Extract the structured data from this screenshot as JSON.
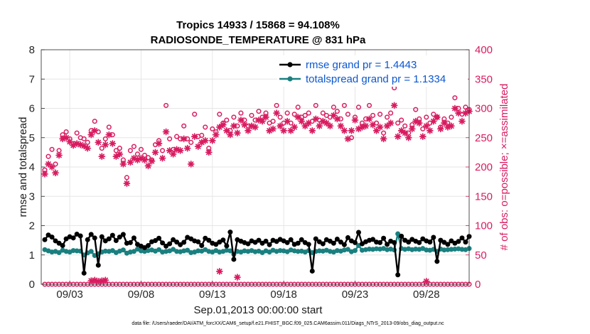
{
  "chart_data": {
    "type": "line",
    "title": "Tropics 14933 / 15868 = 94.108%",
    "subtitle": "RADIOSONDE_TEMPERATURE @ 831 hPa",
    "xlabel": "Sep.01,2013 00:00:00 start",
    "ylabel_left": "rmse and totalspread",
    "ylabel_right": "# of obs: o=possible; ×=assimilated",
    "footnote": "data file: /Users/raeder/DAI/ATM_forcXX/CAM6_setup/f.e21.FHIST_BGC.f09_025.CAM6assim.011/Diags_NTrS_2013-09/obs_diag_output.nc",
    "ylim_left": [
      0,
      8
    ],
    "ylim_right": [
      0,
      400
    ],
    "xlim": [
      1.0,
      31.0
    ],
    "yticks_left": [
      0,
      1,
      2,
      3,
      4,
      5,
      6,
      7,
      8
    ],
    "yticks_right": [
      0,
      50,
      100,
      150,
      200,
      250,
      300,
      350,
      400
    ],
    "xticks": [
      {
        "value": 3,
        "label": "09/03"
      },
      {
        "value": 8,
        "label": "09/08"
      },
      {
        "value": 13,
        "label": "09/13"
      },
      {
        "value": 18,
        "label": "09/18"
      },
      {
        "value": 23,
        "label": "09/23"
      },
      {
        "value": 28,
        "label": "09/28"
      }
    ],
    "colors": {
      "rmse": "#000000",
      "spread": "#1a7f7f",
      "obs": "#d81b60",
      "legend_text": "#0b57d0"
    },
    "x": [
      1.25,
      1.5,
      1.75,
      2.0,
      2.25,
      2.5,
      2.75,
      3.0,
      3.25,
      3.5,
      3.75,
      4.0,
      4.25,
      4.5,
      4.75,
      5.0,
      5.25,
      5.5,
      5.75,
      6.0,
      6.25,
      6.5,
      6.75,
      7.0,
      7.25,
      7.5,
      7.75,
      8.0,
      8.25,
      8.5,
      8.75,
      9.0,
      9.25,
      9.5,
      9.75,
      10.0,
      10.25,
      10.5,
      10.75,
      11.0,
      11.25,
      11.5,
      11.75,
      12.0,
      12.25,
      12.5,
      12.75,
      13.0,
      13.25,
      13.5,
      13.75,
      14.0,
      14.25,
      14.5,
      14.75,
      15.0,
      15.25,
      15.5,
      15.75,
      16.0,
      16.25,
      16.5,
      16.75,
      17.0,
      17.25,
      17.5,
      17.75,
      18.0,
      18.25,
      18.5,
      18.75,
      19.0,
      19.25,
      19.5,
      19.75,
      20.0,
      20.25,
      20.5,
      20.75,
      21.0,
      21.25,
      21.5,
      21.75,
      22.0,
      22.25,
      22.5,
      22.75,
      23.0,
      23.25,
      23.5,
      23.75,
      24.0,
      24.25,
      24.5,
      24.75,
      25.0,
      25.25,
      25.5,
      25.75,
      26.0,
      26.25,
      26.5,
      26.75,
      27.0,
      27.25,
      27.5,
      27.75,
      28.0,
      28.25,
      28.5,
      28.75,
      29.0,
      29.25,
      29.5,
      29.75,
      30.0,
      30.25,
      30.5,
      30.75,
      31.0
    ],
    "series": [
      {
        "name": "rmse",
        "legend": "rmse grand pr = 1.4443",
        "axis": "left",
        "marker": "dot-line",
        "values": [
          1.52,
          1.68,
          1.61,
          1.48,
          1.4,
          1.32,
          1.55,
          1.62,
          1.58,
          1.71,
          1.65,
          0.38,
          1.52,
          1.7,
          1.58,
          0.65,
          1.62,
          1.48,
          1.55,
          1.67,
          1.49,
          1.61,
          1.7,
          1.4,
          1.42,
          1.58,
          1.36,
          1.3,
          1.25,
          1.32,
          1.45,
          1.49,
          1.57,
          1.41,
          1.3,
          1.38,
          1.52,
          1.44,
          1.35,
          1.43,
          1.6,
          1.55,
          1.48,
          1.45,
          1.32,
          1.57,
          1.5,
          1.4,
          1.36,
          1.44,
          1.51,
          1.31,
          1.78,
          0.85,
          1.52,
          1.47,
          1.42,
          1.38,
          1.48,
          1.43,
          1.5,
          1.4,
          1.47,
          1.35,
          1.5,
          1.46,
          1.53,
          1.48,
          1.42,
          1.52,
          1.36,
          1.4,
          1.52,
          1.42,
          1.36,
          0.45,
          1.55,
          1.45,
          1.38,
          1.52,
          1.47,
          1.4,
          1.54,
          1.44,
          1.35,
          1.59,
          1.48,
          1.42,
          1.77,
          1.38,
          1.45,
          1.5,
          1.53,
          1.44,
          1.42,
          1.57,
          1.36,
          1.47,
          1.42,
          0.32,
          1.64,
          1.5,
          1.44,
          1.53,
          1.47,
          1.42,
          1.55,
          1.48,
          1.44,
          1.6,
          0.78,
          1.5,
          1.43,
          1.36,
          1.48,
          1.4,
          1.46,
          1.58,
          1.44,
          1.63
        ]
      },
      {
        "name": "totalspread",
        "legend": "totalspread grand pr = 1.1334",
        "axis": "left",
        "marker": "dot-line",
        "values": [
          1.18,
          1.14,
          1.1,
          1.12,
          1.08,
          1.16,
          1.12,
          1.1,
          1.15,
          1.14,
          1.13,
          1.0,
          1.07,
          1.12,
          0.98,
          1.04,
          1.1,
          1.13,
          1.12,
          1.15,
          1.08,
          1.13,
          1.17,
          1.06,
          1.1,
          1.12,
          1.2,
          1.14,
          1.12,
          1.15,
          1.17,
          1.13,
          1.18,
          1.1,
          1.12,
          1.14,
          1.19,
          1.12,
          1.11,
          1.14,
          1.16,
          1.08,
          1.1,
          1.14,
          1.13,
          1.18,
          1.12,
          1.1,
          1.15,
          1.1,
          1.12,
          1.16,
          1.14,
          1.02,
          1.12,
          1.1,
          1.14,
          1.12,
          1.15,
          1.11,
          1.13,
          1.08,
          1.14,
          1.1,
          1.16,
          1.12,
          1.15,
          1.14,
          1.11,
          1.17,
          1.14,
          1.12,
          1.13,
          1.1,
          1.15,
          1.08,
          1.12,
          1.14,
          1.13,
          1.16,
          1.12,
          1.1,
          1.15,
          1.13,
          1.17,
          1.19,
          1.11,
          1.15,
          1.32,
          1.16,
          1.18,
          1.2,
          1.19,
          1.21,
          1.2,
          1.22,
          1.18,
          1.2,
          1.17,
          1.72,
          1.22,
          1.19,
          1.21,
          1.18,
          1.2,
          1.19,
          1.22,
          1.17,
          1.16,
          1.19,
          1.12,
          1.2,
          1.17,
          1.18,
          1.19,
          1.2,
          1.21,
          1.19,
          1.18,
          1.22
        ]
      },
      {
        "name": "obs_possible",
        "axis": "right",
        "marker": "circle",
        "values": [
          195,
          218,
          230,
          205,
          228,
          255,
          260,
          248,
          240,
          258,
          250,
          248,
          242,
          262,
          278,
          260,
          232,
          248,
          268,
          255,
          228,
          232,
          212,
          182,
          228,
          235,
          222,
          230,
          220,
          216,
          212,
          238,
          245,
          228,
          305,
          248,
          230,
          252,
          248,
          270,
          248,
          242,
          290,
          252,
          254,
          268,
          232,
          265,
          260,
          290,
          275,
          280,
          262,
          285,
          270,
          292,
          280,
          270,
          288,
          280,
          295,
          285,
          292,
          275,
          278,
          305,
          285,
          275,
          292,
          275,
          290,
          302,
          285,
          288,
          292,
          278,
          305,
          280,
          292,
          288,
          285,
          302,
          295,
          282,
          305,
          290,
          250,
          285,
          302,
          275,
          282,
          305,
          288,
          275,
          290,
          258,
          285,
          292,
          335,
          275,
          280,
          270,
          258,
          272,
          298,
          282,
          265,
          285,
          275,
          290,
          285,
          268,
          282,
          275,
          285,
          318,
          300,
          290,
          302,
          298
        ]
      },
      {
        "name": "obs_assimilated",
        "axis": "right",
        "marker": "star",
        "values": [
          188,
          205,
          200,
          190,
          220,
          248,
          250,
          243,
          237,
          240,
          238,
          236,
          232,
          255,
          262,
          242,
          218,
          238,
          255,
          240,
          218,
          222,
          205,
          172,
          208,
          215,
          212,
          215,
          212,
          202,
          210,
          225,
          240,
          215,
          260,
          228,
          222,
          230,
          228,
          248,
          232,
          205,
          252,
          235,
          242,
          245,
          225,
          245,
          255,
          268,
          272,
          262,
          255,
          270,
          258,
          280,
          272,
          262,
          270,
          268,
          280,
          278,
          285,
          262,
          265,
          292,
          270,
          262,
          278,
          262,
          268,
          285,
          278,
          270,
          275,
          262,
          282,
          270,
          278,
          275,
          270,
          288,
          282,
          270,
          262,
          248,
          262,
          280,
          265,
          268,
          270,
          282,
          272,
          262,
          268,
          248,
          270,
          275,
          305,
          252,
          262,
          258,
          250,
          265,
          278,
          275,
          252,
          270,
          262,
          278,
          285,
          265,
          275,
          268,
          270,
          300,
          292,
          278,
          292,
          295
        ]
      },
      {
        "name": "obs_zero_marks",
        "axis": "right",
        "marker": "circle",
        "values": [
          0,
          0,
          0,
          0,
          0,
          0,
          0,
          0,
          0,
          0,
          0,
          0,
          0,
          0,
          0,
          0,
          0,
          0,
          0,
          0,
          0,
          0,
          0,
          0,
          0,
          0,
          0,
          0,
          0,
          0,
          0,
          0,
          0,
          0,
          0,
          0,
          0,
          0,
          0,
          0,
          0,
          0,
          0,
          0,
          0,
          0,
          0,
          0,
          0,
          0,
          0,
          0,
          0,
          0,
          0,
          0,
          0,
          0,
          0,
          0,
          0,
          0,
          0,
          0,
          0,
          0,
          0,
          0,
          0,
          0,
          0,
          0,
          0,
          0,
          0,
          0,
          0,
          0,
          0,
          0,
          0,
          0,
          0,
          0,
          0,
          0,
          0,
          0,
          0,
          0,
          0,
          0,
          0,
          0,
          0,
          0,
          0,
          0,
          0,
          0,
          0,
          0,
          0,
          0,
          0,
          0,
          0,
          0,
          0,
          0,
          0,
          0,
          0,
          0,
          0,
          0,
          0,
          0,
          0,
          0
        ]
      },
      {
        "name": "obs_outliers",
        "axis": "right",
        "marker": "star",
        "x": [
          4.5,
          4.75,
          5.0,
          5.25,
          5.5,
          13.5,
          14.75,
          28.0
        ],
        "values": [
          6,
          7,
          5,
          6,
          7,
          22,
          12,
          5
        ]
      }
    ]
  }
}
